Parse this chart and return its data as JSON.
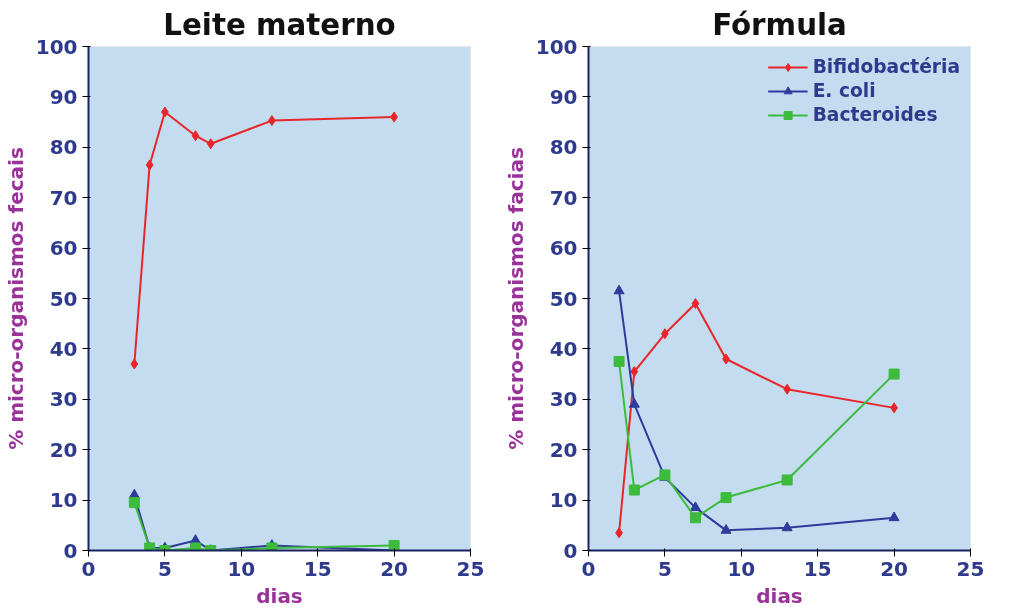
{
  "chart_data": [
    {
      "type": "line",
      "title": "Leite materno",
      "xlabel": "dias",
      "ylabel": "% micro-organismos fecais",
      "x": [
        3,
        4,
        5,
        7,
        8,
        12,
        20
      ],
      "xlim": [
        0,
        25
      ],
      "xticks": [
        0,
        5,
        10,
        15,
        20,
        25
      ],
      "ylim": [
        0,
        100
      ],
      "yticks": [
        0,
        10,
        20,
        30,
        40,
        50,
        60,
        70,
        80,
        90,
        100
      ],
      "grid": false,
      "legend": false,
      "series": [
        {
          "color": "#e8262a",
          "marker": "diamond",
          "values": [
            37,
            76.5,
            87,
            82.3,
            80.7,
            85.3,
            86
          ]
        },
        {
          "color": "#2e3a9c",
          "marker": "triangle",
          "values": [
            11,
            0.5,
            0.5,
            2,
            0,
            1,
            0
          ]
        },
        {
          "color": "#3dbb3c",
          "marker": "square",
          "values": [
            9.5,
            0.5,
            0,
            0.5,
            0,
            0.5,
            1
          ]
        }
      ]
    },
    {
      "type": "line",
      "title": "Fórmula",
      "xlabel": "dias",
      "ylabel": "% micro-organismos facias",
      "x": [
        2,
        3,
        5,
        7,
        9,
        13,
        20
      ],
      "xlim": [
        0,
        25
      ],
      "xticks": [
        0,
        5,
        10,
        15,
        20,
        25
      ],
      "ylim": [
        0,
        100
      ],
      "yticks": [
        0,
        10,
        20,
        30,
        40,
        50,
        60,
        70,
        80,
        90,
        100
      ],
      "grid": false,
      "legend": "top right",
      "series": [
        {
          "name": "Bifidobactéria",
          "color": "#e8262a",
          "marker": "diamond",
          "values": [
            3.5,
            35.5,
            43,
            49,
            38,
            32,
            28.3
          ]
        },
        {
          "name": "E. coli",
          "color": "#2e3a9c",
          "marker": "triangle",
          "values": [
            51.5,
            29,
            14.5,
            8.5,
            4,
            4.5,
            6.5
          ]
        },
        {
          "name": "Bacteroides",
          "color": "#3dbb3c",
          "marker": "square",
          "values": [
            37.5,
            12,
            15,
            6.5,
            10.5,
            14,
            35
          ]
        }
      ]
    }
  ]
}
